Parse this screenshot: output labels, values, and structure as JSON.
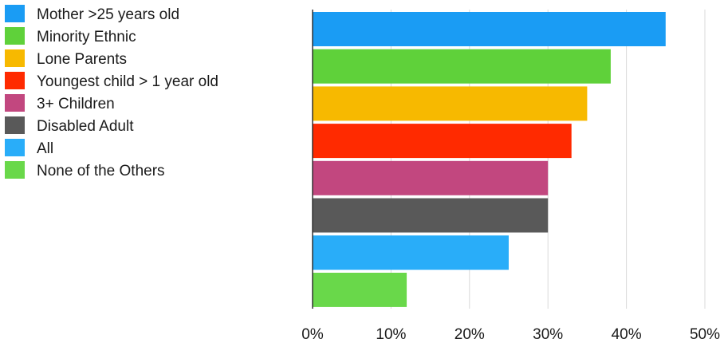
{
  "chart_data": {
    "type": "bar",
    "orientation": "horizontal",
    "categories": [
      "Mother >25 years old",
      "Minority Ethnic",
      "Lone Parents",
      "Youngest child > 1 year old",
      "3+ Children",
      "Disabled Adult",
      "All",
      "None of the Others"
    ],
    "values": [
      45,
      38,
      35,
      33,
      30,
      30,
      25,
      12
    ],
    "colors": [
      "#1a9cf4",
      "#5fd13a",
      "#f7b900",
      "#ff2a00",
      "#c2477f",
      "#595959",
      "#29adf9",
      "#69d84a"
    ],
    "xlim": [
      0,
      50
    ],
    "xticks": [
      0,
      10,
      20,
      30,
      40,
      50
    ],
    "xtick_labels": [
      "0%",
      "10%",
      "20%",
      "30%",
      "40%",
      "50%"
    ],
    "grid": "vertical",
    "legend_position": "top-left",
    "title": "",
    "xlabel": "",
    "ylabel": ""
  }
}
